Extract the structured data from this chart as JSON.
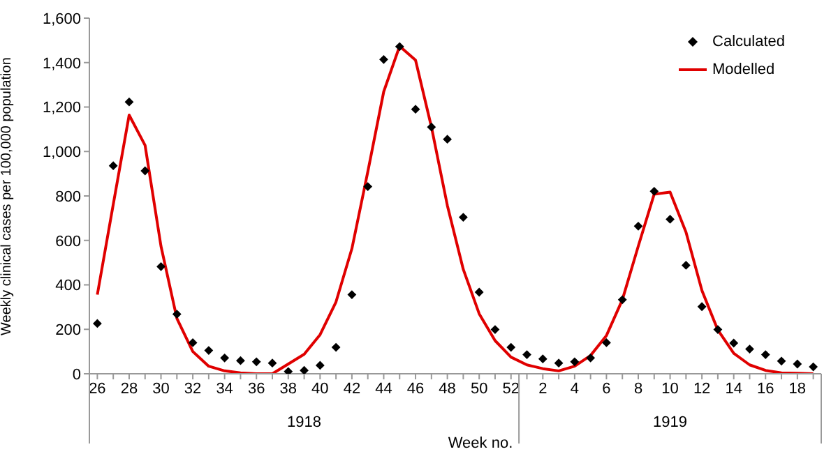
{
  "chart_data": {
    "type": "line",
    "ylabel": "Weekly clinical cases per 100,000 population",
    "xlabel": "Week no.",
    "categories": [
      "26",
      null,
      "28",
      null,
      "30",
      null,
      "32",
      null,
      "34",
      null,
      "36",
      null,
      "38",
      null,
      "40",
      null,
      "42",
      null,
      "44",
      null,
      "46",
      null,
      "48",
      null,
      "50",
      null,
      "52",
      null,
      "2",
      null,
      "4",
      null,
      "6",
      null,
      "8",
      null,
      "10",
      null,
      "12",
      null,
      "14",
      null,
      "16",
      null,
      "18",
      null
    ],
    "series": [
      {
        "name": "Calculated",
        "type": "scatter",
        "color": "#000000",
        "marker": "diamond",
        "values": [
          226,
          936,
          1223,
          913,
          482,
          268,
          140,
          105,
          71,
          59,
          54,
          48,
          10,
          15,
          38,
          119,
          356,
          842,
          1414,
          1472,
          1190,
          1110,
          1055,
          704,
          367,
          199,
          119,
          86,
          67,
          48,
          54,
          71,
          140,
          333,
          664,
          821,
          695,
          488,
          302,
          199,
          138,
          111,
          86,
          57,
          44,
          31
        ]
      },
      {
        "name": "Modelled",
        "color": "#e00000",
        "marker": "none",
        "values": [
          356,
          762,
          1164,
          1028,
          574,
          249,
          100,
          34,
          13,
          4,
          0,
          0,
          44,
          88,
          176,
          323,
          563,
          909,
          1269,
          1474,
          1411,
          1110,
          757,
          470,
          270,
          149,
          75,
          40,
          23,
          13,
          34,
          82,
          172,
          333,
          574,
          808,
          817,
          637,
          375,
          197,
          92,
          40,
          15,
          4,
          2,
          0
        ]
      }
    ],
    "ylim": [
      0,
      1600
    ],
    "yticks": [
      0,
      {
        "value": 200,
        "label": "200"
      },
      {
        "value": 400,
        "label": "400"
      },
      {
        "value": 600,
        "label": "600"
      },
      {
        "value": 800,
        "label": "800"
      },
      {
        "value": 1000,
        "label": "1,000"
      },
      {
        "value": 1200,
        "label": "1,200"
      },
      {
        "value": 1400,
        "label": "1,400"
      },
      {
        "value": 1600,
        "label": "1,600"
      }
    ],
    "grid": false,
    "legend": "top right",
    "annotations": [
      "1918",
      "1919"
    ]
  }
}
